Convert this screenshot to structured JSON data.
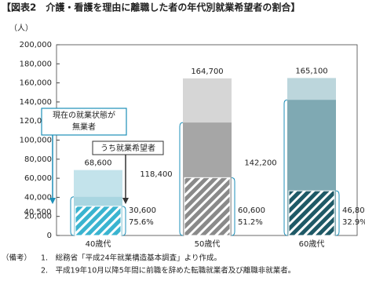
{
  "chart_data": {
    "type": "overlap-bar",
    "title": "【図表2　介護・看護を理由に離職した者の年代別就業希望者の割合】",
    "y_unit": "（人）",
    "categories": [
      "40歳代",
      "50歳代",
      "60歳代"
    ],
    "ylim": [
      0,
      200000
    ],
    "yticks": [
      {
        "value": 0,
        "label": "0"
      },
      {
        "value": 20000,
        "label": "20,000"
      },
      {
        "value": 40000,
        "label": "40,000"
      },
      {
        "value": 60000,
        "label": "60,000"
      },
      {
        "value": 80000,
        "label": "80,000"
      },
      {
        "value": 100000,
        "label": "100,000"
      },
      {
        "value": 120000,
        "label": "120,000"
      },
      {
        "value": 140000,
        "label": "140,000"
      },
      {
        "value": 160000,
        "label": "160,000"
      },
      {
        "value": 180000,
        "label": "180,000"
      },
      {
        "value": 200000,
        "label": "200,000"
      }
    ],
    "series": [
      {
        "values": [
          68600,
          164700,
          165100
        ],
        "value_labels": [
          "68,600",
          "164,700",
          "165,100"
        ],
        "colors": [
          "#c3e3eb",
          "#d6d6d6",
          "#bcd6dc"
        ]
      },
      {
        "name": "現在の就業状態が無業者",
        "values": [
          40500,
          118400,
          142200
        ],
        "value_labels": [
          "40,500",
          "118,400",
          "142,200"
        ],
        "colors": [
          "#a9d6e1",
          "#a6a6a6",
          "#7fa9b3"
        ]
      },
      {
        "name": "うち就業希望者",
        "values": [
          30600,
          60600,
          46800
        ],
        "value_labels": [
          "30,600",
          "60,600",
          "46,800"
        ],
        "colors": [
          "#3ab4d0",
          "#8a8a8a",
          "#1e5966"
        ],
        "shares": [
          {
            "value": 75.6,
            "label": "75.6%"
          },
          {
            "value": 51.2,
            "label": "51.2%"
          },
          {
            "value": 32.9,
            "label": "32.9%"
          }
        ]
      }
    ],
    "notes": [
      "（備考）",
      "1.　総務省「平成24年就業構造基本調査」より作成。",
      "2.　平成19年10月以降5年間に前職を辞めた転職就業者及び離職非就業者。"
    ]
  }
}
